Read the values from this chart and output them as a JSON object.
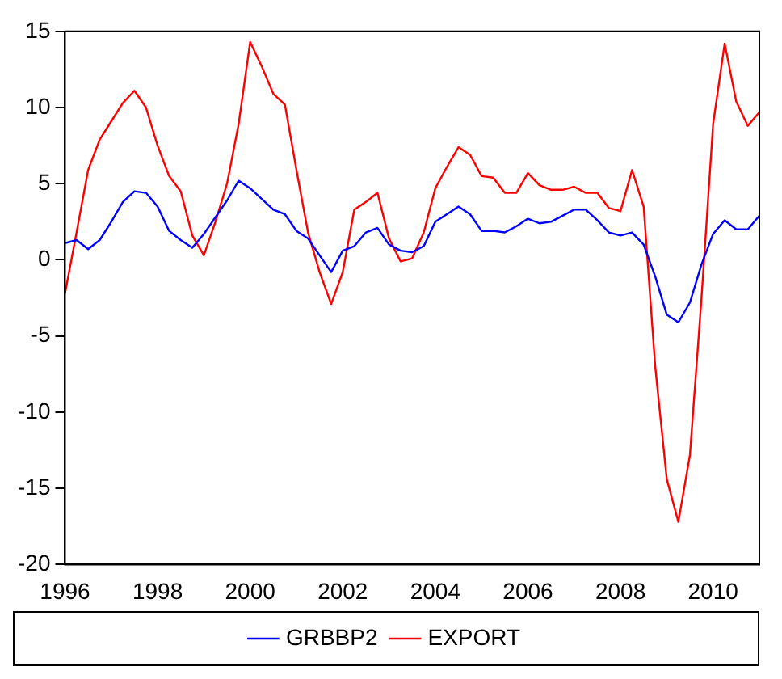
{
  "chart_data": {
    "type": "line",
    "x": [
      1996,
      1996.25,
      1996.5,
      1996.75,
      1997,
      1997.25,
      1997.5,
      1997.75,
      1998,
      1998.25,
      1998.5,
      1998.75,
      1999,
      1999.25,
      1999.5,
      1999.75,
      2000,
      2000.25,
      2000.5,
      2000.75,
      2001,
      2001.25,
      2001.5,
      2001.75,
      2002,
      2002.25,
      2002.5,
      2002.75,
      2003,
      2003.25,
      2003.5,
      2003.75,
      2004,
      2004.25,
      2004.5,
      2004.75,
      2005,
      2005.25,
      2005.5,
      2005.75,
      2006,
      2006.25,
      2006.5,
      2006.75,
      2007,
      2007.25,
      2007.5,
      2007.75,
      2008,
      2008.25,
      2008.5,
      2008.75,
      2009,
      2009.25,
      2009.5,
      2009.75,
      2010,
      2010.25,
      2010.5,
      2010.75,
      2011
    ],
    "series": [
      {
        "name": "GRBBP2",
        "color": "#0000ff",
        "values": [
          1.1,
          1.3,
          0.7,
          1.3,
          2.5,
          3.8,
          4.5,
          4.4,
          3.5,
          1.9,
          1.3,
          0.8,
          1.7,
          2.8,
          3.9,
          5.2,
          4.7,
          4.0,
          3.3,
          3.0,
          1.9,
          1.4,
          0.3,
          -0.8,
          0.6,
          0.9,
          1.8,
          2.1,
          1.0,
          0.6,
          0.5,
          0.9,
          2.5,
          3.0,
          3.5,
          3.0,
          1.9,
          1.9,
          1.8,
          2.2,
          2.7,
          2.4,
          2.5,
          2.9,
          3.3,
          3.3,
          2.6,
          1.8,
          1.6,
          1.8,
          1.0,
          -1.1,
          -3.6,
          -4.1,
          -2.8,
          -0.3,
          1.7,
          2.6,
          2.0,
          2.0,
          2.9
        ]
      },
      {
        "name": "EXPORT",
        "color": "#ff0000",
        "values": [
          -2.2,
          1.8,
          5.9,
          7.9,
          9.1,
          10.3,
          11.1,
          10.0,
          7.5,
          5.5,
          4.5,
          1.6,
          0.3,
          2.5,
          5.0,
          8.9,
          14.3,
          12.7,
          10.9,
          10.2,
          5.9,
          1.8,
          -0.8,
          -2.9,
          -0.8,
          3.3,
          3.8,
          4.4,
          1.4,
          -0.1,
          0.1,
          1.8,
          4.7,
          6.1,
          7.4,
          6.9,
          5.5,
          5.4,
          4.4,
          4.4,
          5.7,
          4.9,
          4.6,
          4.6,
          4.8,
          4.4,
          4.4,
          3.4,
          3.2,
          5.9,
          3.5,
          -7.0,
          -14.4,
          -17.2,
          -12.8,
          -2.5,
          8.9,
          14.2,
          10.4,
          8.8,
          9.7
        ]
      }
    ],
    "xlim": [
      1996,
      2011
    ],
    "xticks": [
      1996,
      1998,
      2000,
      2002,
      2004,
      2006,
      2008,
      2010
    ],
    "ylim": [
      -20,
      15
    ],
    "yticks": [
      -20,
      -15,
      -10,
      -5,
      0,
      5,
      10,
      15
    ],
    "grid": false,
    "legend": "bottom",
    "marker": "none",
    "line_style": "solid"
  }
}
